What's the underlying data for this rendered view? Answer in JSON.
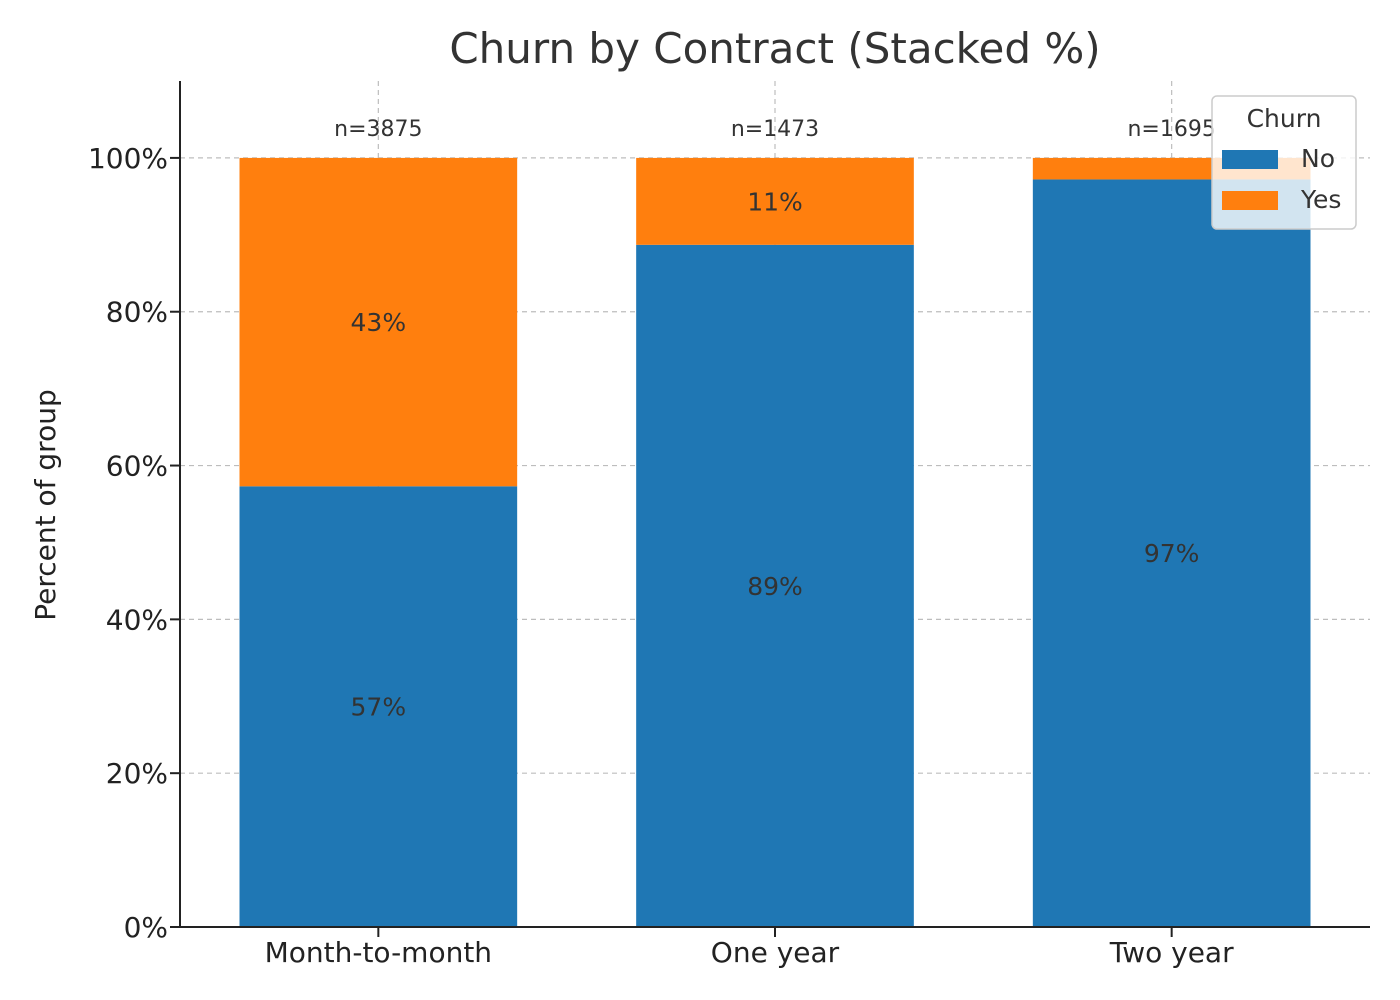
{
  "chart_data": {
    "type": "bar",
    "stacked": true,
    "title": "Churn by Contract (Stacked %)",
    "xlabel": "",
    "ylabel": "Percent of group",
    "categories": [
      "Month-to-month",
      "One year",
      "Two year"
    ],
    "counts": [
      "n=3875",
      "n=1473",
      "n=1695"
    ],
    "series": [
      {
        "name": "No",
        "color": "#1f77b4",
        "values": [
          57.3,
          88.7,
          97.2
        ],
        "labels": [
          "57%",
          "89%",
          "97%"
        ]
      },
      {
        "name": "Yes",
        "color": "#ff7f0e",
        "values": [
          42.7,
          11.3,
          2.8
        ],
        "labels": [
          "43%",
          "11%",
          ""
        ]
      }
    ],
    "ylim": [
      0,
      110
    ],
    "yticks": [
      0,
      20,
      40,
      60,
      80,
      100
    ],
    "ytick_labels": [
      "0%",
      "20%",
      "40%",
      "60%",
      "80%",
      "100%"
    ],
    "grid": true,
    "legend": {
      "title": "Churn",
      "placement": "top-right"
    }
  }
}
